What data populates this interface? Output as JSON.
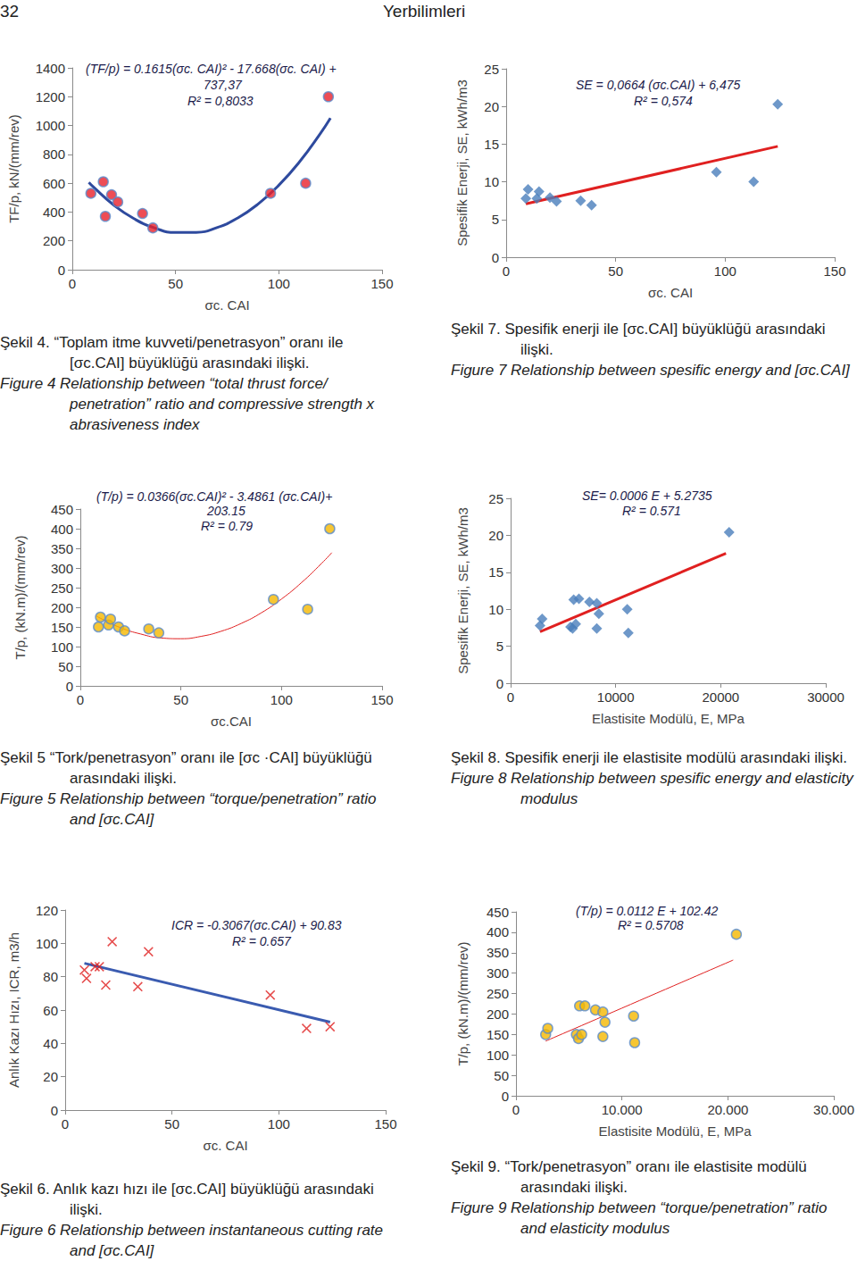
{
  "header": {
    "page_number": "32",
    "journal": "Yerbilimleri"
  },
  "chart_data": [
    {
      "type": "scatter",
      "x_label": "σc. CAI",
      "y_label": "TF/p, kN/(mm/rev)",
      "xlim": [
        0,
        150
      ],
      "xticks": [
        0,
        50,
        100,
        150
      ],
      "ylim": [
        0,
        1400
      ],
      "yticks": [
        0,
        200,
        400,
        600,
        800,
        1000,
        1200,
        1400
      ],
      "grid": false,
      "annotations": [
        "(TF/p) = 0.1615(σc. CAI)² - 17.668(σc. CAI) +",
        "737,37",
        "R² = 0,8033"
      ],
      "series": [
        {
          "type": "scatter",
          "marker": "circle",
          "color": "#e8202a",
          "x": [
            9,
            15,
            16,
            19,
            22,
            34,
            39,
            96,
            113,
            124
          ],
          "values": [
            530,
            610,
            370,
            520,
            470,
            390,
            290,
            530,
            600,
            1200
          ]
        },
        {
          "type": "line",
          "line_style": "solid",
          "color": "#2e4a9e",
          "x": [
            8,
            10,
            20,
            30,
            40,
            50,
            60,
            70,
            80,
            90,
            100,
            110,
            120,
            125
          ],
          "values": [
            606,
            577,
            449,
            353,
            289,
            258,
            259,
            292,
            358,
            456,
            586,
            748,
            943,
            1052
          ]
        }
      ],
      "caption": {
        "tr": "Şekil 4. “Toplam itme kuvveti/penetrasyon” oranı ile [σc.CAI] büyüklüğü arasındaki ilişki.",
        "en": "Figure 4 Relationship between “total thrust force/ penetration” ratio and compressive strength x abrasiveness index"
      }
    },
    {
      "type": "scatter",
      "x_label": "σc. CAI",
      "y_label": "Spesifik Enerji, SE, kWh/m3",
      "xlim": [
        0,
        150
      ],
      "xticks": [
        0,
        50,
        100,
        150
      ],
      "ylim": [
        0,
        25
      ],
      "yticks": [
        0,
        5,
        10,
        15,
        20,
        25
      ],
      "grid": false,
      "annotations": [
        "SE = 0,0664 (σc.CAI) + 6,475",
        "R² = 0,574"
      ],
      "series": [
        {
          "type": "scatter",
          "marker": "diamond",
          "color": "#4a7ebb",
          "x": [
            9,
            10,
            14,
            15,
            20,
            23,
            34,
            39,
            96,
            113,
            124
          ],
          "values": [
            7.8,
            9,
            7.8,
            8.7,
            7.9,
            7.4,
            7.5,
            6.9,
            11.3,
            10,
            20.3
          ]
        },
        {
          "type": "line",
          "line_style": "solid",
          "color": "#e02020",
          "x": [
            9,
            124
          ],
          "values": [
            7.07,
            14.71
          ]
        }
      ],
      "caption": {
        "tr": "Şekil 7. Spesifik enerji ile [σc.CAI] büyüklüğü arasındaki ilişki.",
        "en": "Figure 7 Relationship between spesific energy and [σc.CAI]"
      }
    },
    {
      "type": "scatter",
      "x_label": "σc.CAI",
      "y_label": "T/p, (kN.m)/(mm/rev)",
      "xlim": [
        0,
        150
      ],
      "xticks": [
        0,
        50,
        100,
        150
      ],
      "ylim": [
        0,
        450
      ],
      "yticks": [
        0,
        50,
        100,
        150,
        200,
        250,
        300,
        350,
        400,
        450
      ],
      "grid": false,
      "annotations": [
        "(T/p) = 0.0366(σc.CAI)² - 3.4861 (σc.CAI)+",
        "203.15",
        "R² = 0.79"
      ],
      "series": [
        {
          "type": "scatter",
          "marker": "circle",
          "color": "#f5b800",
          "x": [
            9,
            10,
            14,
            15,
            19,
            22,
            34,
            39,
            96,
            113,
            124
          ],
          "values": [
            150,
            175,
            155,
            170,
            150,
            140,
            145,
            135,
            220,
            195,
            400
          ]
        },
        {
          "type": "line",
          "line_style": "solid",
          "color": "#e02020",
          "x": [
            8,
            10,
            20,
            30,
            40,
            50,
            60,
            70,
            80,
            90,
            100,
            110,
            120,
            125
          ],
          "values": [
            178,
            172,
            148,
            132,
            122,
            120,
            126,
            139,
            159,
            186,
            221,
            263,
            312,
            339
          ]
        }
      ],
      "caption": {
        "tr": "Şekil 5 “Tork/penetrasyon” oranı ile [σc ·CAI] büyüklüğü arasındaki ilişki.",
        "en": "Figure 5 Relationship between “torque/penetration” ratio and [σc.CAI]"
      }
    },
    {
      "type": "scatter",
      "x_label": "Elastisite Modülü, E, MPa",
      "y_label": "Spesifik Enerji, SE, kWh/m3",
      "xlim": [
        0,
        30000
      ],
      "xticks": [
        0,
        10000,
        20000,
        30000
      ],
      "ylim": [
        0,
        25
      ],
      "yticks": [
        0,
        5,
        10,
        15,
        20,
        25
      ],
      "grid": false,
      "annotations": [
        "SE= 0.0006 E + 5.2735",
        "R² = 0.571"
      ],
      "series": [
        {
          "type": "scatter",
          "marker": "diamond",
          "color": "#4a7ebb",
          "x": [
            2800,
            3000,
            5700,
            5900,
            6000,
            6200,
            6500,
            7500,
            8200,
            8200,
            8400,
            11100,
            11200,
            20800
          ],
          "values": [
            7.8,
            8.7,
            7.6,
            7.4,
            11.3,
            8,
            11.4,
            11,
            10.8,
            7.4,
            9.4,
            10,
            6.8,
            20.4
          ]
        },
        {
          "type": "line",
          "line_style": "solid",
          "color": "#e02020",
          "x": [
            2800,
            20500
          ],
          "values": [
            6.95,
            17.57
          ]
        }
      ],
      "caption": {
        "tr": "Şekil 8. Spesifik enerji ile elastisite modülü arasındaki ilişki.",
        "en": "Figure 8 Relationship between spesific energy and elasticity modulus"
      }
    },
    {
      "type": "scatter",
      "x_label": "σc. CAI",
      "y_label": "Anlık Kazı Hızı, ICR, m3/h",
      "xlim": [
        0,
        150
      ],
      "xticks": [
        0,
        50,
        100,
        150
      ],
      "ylim": [
        0,
        120
      ],
      "yticks": [
        0,
        20,
        40,
        60,
        80,
        100,
        120
      ],
      "grid": false,
      "annotations": [
        "ICR = -0.3067(σc.CAI) + 90.83",
        "R² = 0.657"
      ],
      "series": [
        {
          "type": "scatter",
          "marker": "cross",
          "color": "#e02020",
          "x": [
            9,
            10,
            14,
            16,
            19,
            22,
            34,
            39,
            96,
            113,
            124
          ],
          "values": [
            84,
            79,
            86,
            86,
            75,
            101,
            74,
            95,
            69,
            49,
            50
          ]
        },
        {
          "type": "line",
          "line_style": "solid",
          "color": "#3a5bb0",
          "x": [
            9,
            124
          ],
          "values": [
            88.07,
            52.8
          ]
        }
      ],
      "caption": {
        "tr": "Şekil 6. Anlık kazı hızı ile [σc.CAI] büyüklüğü arasındaki ilişki.",
        "en": "Figure 6 Relationship between instantaneous cutting rate and [σc.CAI]"
      }
    },
    {
      "type": "scatter",
      "x_label": "Elastisite Modülü, E, MPa",
      "y_label": "T/p, (kN.m)/(mm/rev)",
      "xlim": [
        0,
        30000
      ],
      "xticks": [
        0,
        {
          "value": 10000,
          "label": "10.000"
        },
        {
          "value": 20000,
          "label": "20.000"
        },
        {
          "value": 30000,
          "label": "30.000"
        }
      ],
      "ylim": [
        0,
        450
      ],
      "yticks": [
        0,
        50,
        100,
        150,
        200,
        250,
        300,
        350,
        400,
        450
      ],
      "grid": false,
      "annotations": [
        "(T/p) = 0.0112 E + 102.42",
        "R² = 0.5708"
      ],
      "series": [
        {
          "type": "scatter",
          "marker": "circle",
          "color": "#f5b800",
          "x": [
            2800,
            3000,
            5700,
            5900,
            6000,
            6200,
            6500,
            7500,
            8200,
            8200,
            8400,
            11100,
            11200,
            20800
          ],
          "values": [
            150,
            165,
            150,
            140,
            220,
            150,
            220,
            210,
            145,
            205,
            180,
            195,
            130,
            395
          ]
        },
        {
          "type": "line",
          "line_style": "solid",
          "color": "#e02020",
          "x": [
            2800,
            20500
          ],
          "values": [
            133.8,
            332
          ]
        }
      ],
      "caption": {
        "tr": "Şekil 9. “Tork/penetrasyon” oranı ile elastisite modülü arasındaki ilişki.",
        "en": "Figure 9 Relationship between “torque/penetration” ratio and elasticity modulus"
      }
    }
  ]
}
